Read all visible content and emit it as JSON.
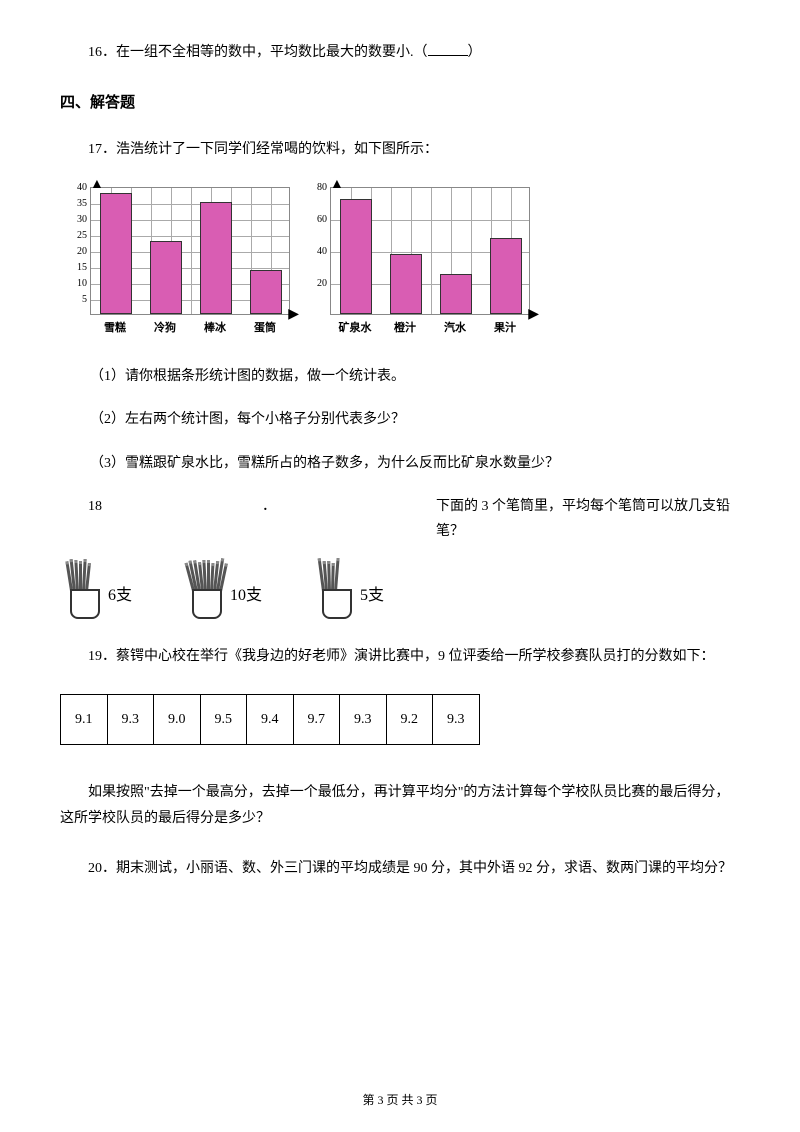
{
  "q16": {
    "num": "16",
    "text": "．在一组不全相等的数中，平均数比最大的数要小.（",
    "close": "）"
  },
  "section4": "四、解答题",
  "q17": {
    "num": "17",
    "text": "．浩浩统计了一下同学们经常喝的饮料，如下图所示：",
    "chart1": {
      "ylabels": [
        "40",
        "35",
        "30",
        "25",
        "20",
        "15",
        "10",
        "5"
      ],
      "ytick_count": 8,
      "xlabels": [
        "雪糕",
        "冷狗",
        "棒冰",
        "蛋筒"
      ],
      "values": [
        38,
        23,
        35,
        14
      ],
      "ymax": 40,
      "bar_color": "#d95db3",
      "grid_color": "#aaaaaa"
    },
    "chart2": {
      "ylabels": [
        "80",
        "60",
        "40",
        "20"
      ],
      "ytick_count": 4,
      "xlabels": [
        "矿泉水",
        "橙汁",
        "汽水",
        "果汁"
      ],
      "values": [
        72,
        38,
        25,
        48
      ],
      "ymax": 80,
      "bar_color": "#d95db3",
      "grid_color": "#aaaaaa"
    },
    "sub1": "（1）请你根据条形统计图的数据，做一个统计表。",
    "sub2": "（2）左右两个统计图，每个小格子分别代表多少？",
    "sub3": "（3）雪糕跟矿泉水比，雪糕所占的格子数多，为什么反而比矿泉水数量少？"
  },
  "q18": {
    "num": "18",
    "dot": "．",
    "text": "下面的 3 个笔筒里，平均每个笔筒可以放几支铅笔？",
    "cups": [
      {
        "count": "6支",
        "pencils": 6
      },
      {
        "count": "10支",
        "pencils": 10
      },
      {
        "count": "5支",
        "pencils": 5
      }
    ]
  },
  "q19": {
    "num": "19",
    "text": "．蔡锷中心校在举行《我身边的好老师》演讲比赛中，9 位评委给一所学校参赛队员打的分数如下：",
    "scores": [
      "9.1",
      "9.3",
      "9.0",
      "9.5",
      "9.4",
      "9.7",
      "9.3",
      "9.2",
      "9.3"
    ],
    "followup": "如果按照\"去掉一个最高分，去掉一个最低分，再计算平均分\"的方法计算每个学校队员比赛的最后得分，这所学校队员的最后得分是多少？"
  },
  "q20": {
    "num": "20",
    "text": "．期末测试，小丽语、数、外三门课的平均成绩是 90 分，其中外语 92 分，求语、数两门课的平均分？"
  },
  "footer": "第 3 页 共 3 页"
}
